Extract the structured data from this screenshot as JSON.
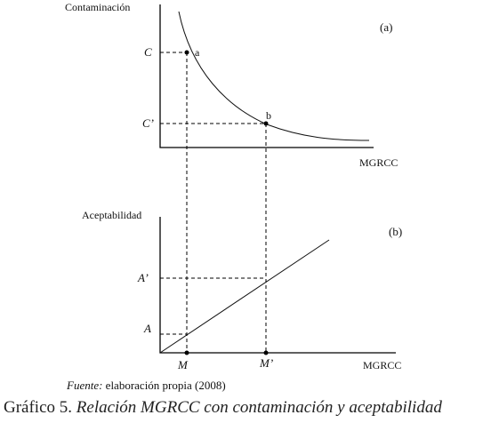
{
  "panel_a": {
    "tag": "(a)",
    "y_axis_label": "Contaminación",
    "x_axis_label": "MGRCC",
    "y_ticks": [
      "C",
      "C’"
    ],
    "point_labels": [
      "a",
      "b"
    ]
  },
  "panel_b": {
    "tag": "(b)",
    "y_axis_label": "Aceptabilidad",
    "x_axis_label": "MGRCC",
    "y_ticks": [
      "A’",
      "A"
    ],
    "x_ticks": [
      "M",
      "M’"
    ]
  },
  "source": {
    "lead": "Fuente:",
    "text": "elaboración propia (2008)"
  },
  "caption": {
    "prefix": "Gráfico 5.",
    "title": "Relación MGRCC con contaminación y aceptabilidad"
  }
}
